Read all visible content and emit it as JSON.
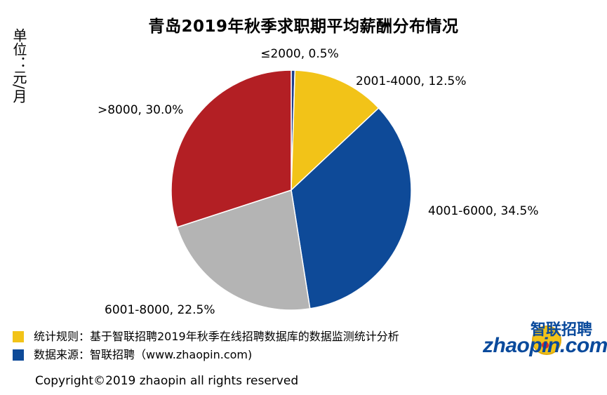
{
  "title": "青岛2019年秋季求职期平均薪酬分布情况",
  "unit_label": "单位：元/月",
  "chart_data": {
    "type": "pie",
    "title": "青岛2019年秋季求职期平均薪酬分布情况",
    "start_angle_deg": 0,
    "direction": "clockwise",
    "slices": [
      {
        "label": "≤2000, 0.5%",
        "category": "≤2000",
        "value": 0.5,
        "color": "#1f3f8c"
      },
      {
        "label": "2001-4000, 12.5%",
        "category": "2001-4000",
        "value": 12.5,
        "color": "#f2c318"
      },
      {
        "label": "4001-6000, 34.5%",
        "category": "4001-6000",
        "value": 34.5,
        "color": "#0e4a98"
      },
      {
        "label": "6001-8000, 22.5%",
        "category": "6001-8000",
        "value": 22.5,
        "color": "#b4b4b4"
      },
      {
        "label": ">8000, 30.0%",
        "category": ">8000",
        "value": 30.0,
        "color": "#b31f24"
      }
    ]
  },
  "legend": [
    {
      "text": "统计规则：基于智联招聘2019年秋季在线招聘数据库的数据监测统计分析",
      "color": "#f2c318"
    },
    {
      "text": "数据来源：智联招聘（www.zhaopin.com)",
      "color": "#0e4a98"
    }
  ],
  "copyright": "Copyright©2019 zhaopin all rights reserved",
  "logo": {
    "name_cn": "智联招聘",
    "name_en": "zhaopin.com"
  }
}
